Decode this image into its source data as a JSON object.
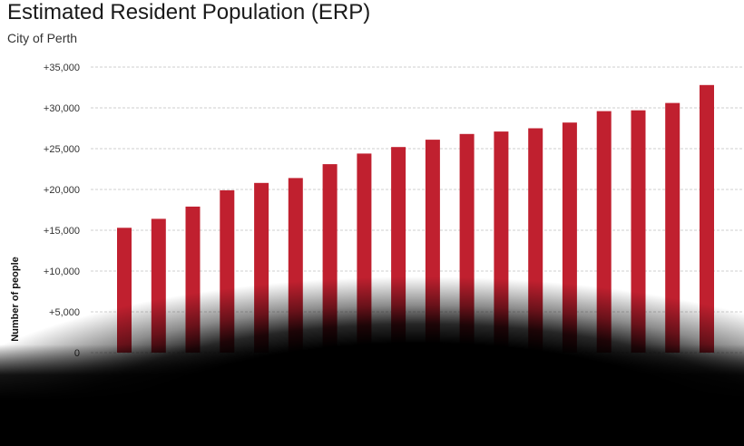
{
  "chart_data": {
    "type": "bar",
    "title": "Estimated Resident Population (ERP)",
    "subtitle": "City of Perth",
    "ylabel": "Number of people",
    "ylim": [
      0,
      35000
    ],
    "yticks": [
      0,
      5000,
      10000,
      15000,
      20000,
      25000,
      30000,
      35000
    ],
    "ytick_labels": [
      "0",
      "+5,000",
      "+10,000",
      "+15,000",
      "+20,000",
      "+25,000",
      "+30,000",
      "+35,000"
    ],
    "grid": true,
    "bar_color": "#c0202f",
    "values": [
      15300,
      16400,
      17900,
      19900,
      20800,
      21400,
      23100,
      24400,
      25200,
      26100,
      26800,
      27100,
      27500,
      28200,
      29600,
      29700,
      30600,
      32800
    ]
  }
}
